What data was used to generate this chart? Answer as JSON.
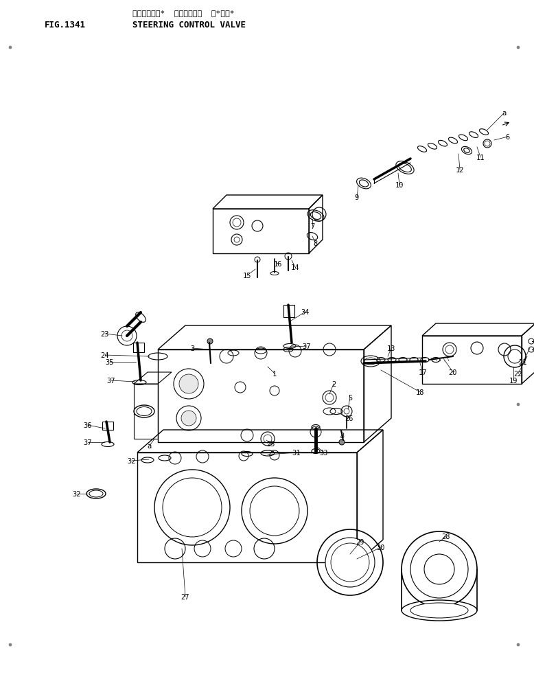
{
  "title_jp": "ステアリング゚  コントロール  パルプ",
  "title_en": "STEERING CONTROL VALVE",
  "fig_label": "FIG.1341",
  "bg_color": "#ffffff",
  "lc": "#000000",
  "fig_w": 7.78,
  "fig_h": 9.87,
  "dpi": 100
}
